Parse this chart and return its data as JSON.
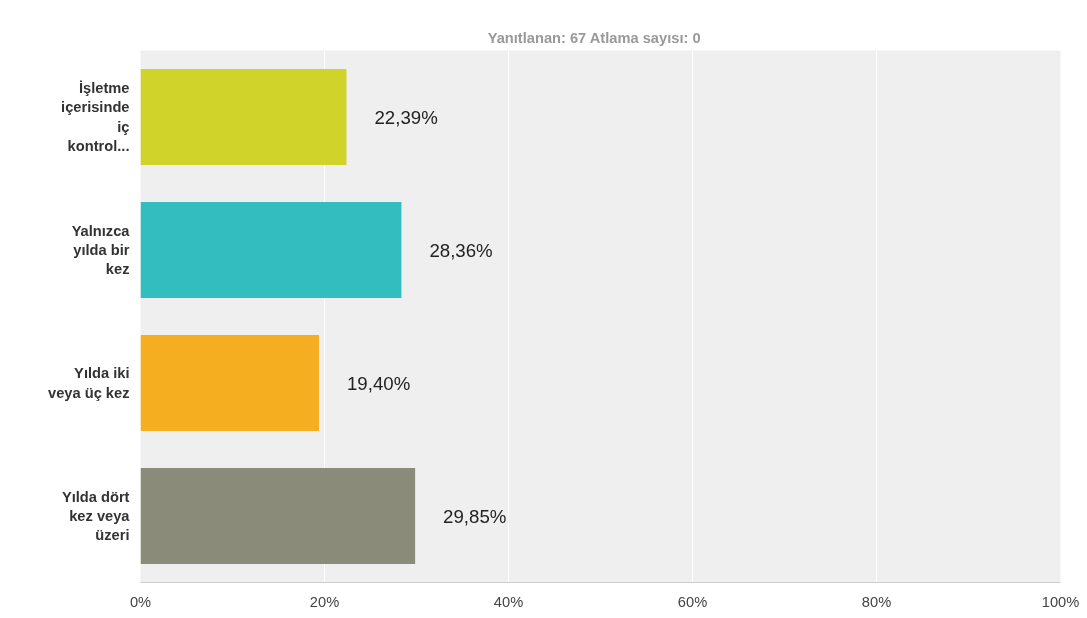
{
  "chart_data": {
    "type": "bar",
    "orientation": "horizontal",
    "title": "Yanıtlanan: 67    Atlama sayısı: 0",
    "categories": [
      "İşletme içerisinde iç kontrol...",
      "Yalnızca yılda bir kez",
      "Yılda iki veya üç kez",
      "Yılda dört kez veya üzeri"
    ],
    "values": [
      22.39,
      28.36,
      19.4,
      29.85
    ],
    "colors": [
      "#d0d42a",
      "#33bdbf",
      "#f5ae1f",
      "#8a8b79"
    ],
    "value_labels": [
      "22,39%",
      "28,36%",
      "19,40%",
      "29,85%"
    ],
    "xlim": [
      0,
      100
    ],
    "xticks": [
      {
        "value": 0,
        "label": "0%"
      },
      {
        "value": 20,
        "label": "20%"
      },
      {
        "value": 40,
        "label": "40%"
      },
      {
        "value": 60,
        "label": "60%"
      },
      {
        "value": 80,
        "label": "80%"
      },
      {
        "value": 100,
        "label": "100%"
      }
    ],
    "grid": "x"
  }
}
